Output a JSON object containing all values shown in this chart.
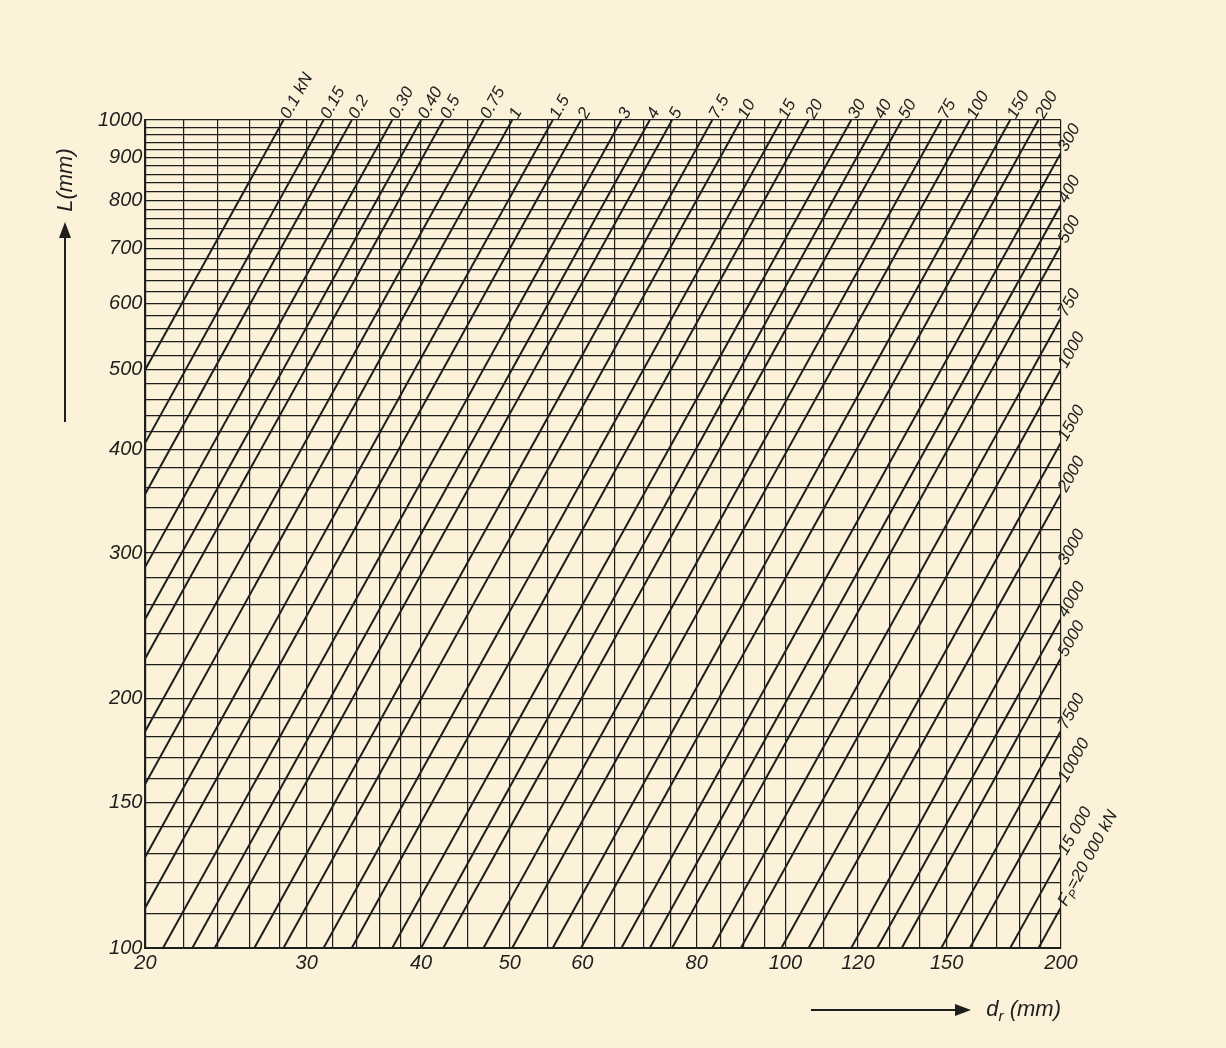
{
  "chart_data": {
    "type": "line",
    "xlabel": "d$_{r}$ (mm)",
    "ylabel": "L(mm)",
    "log": "xy",
    "grid": true,
    "legend": false,
    "marker": "none",
    "line_style": "solid",
    "xlim": [
      20,
      200
    ],
    "ylim": [
      100,
      1000
    ],
    "xticks": [
      20,
      {
        "value": 22,
        "label": null
      },
      {
        "value": 24,
        "label": null
      },
      {
        "value": 26,
        "label": null
      },
      {
        "value": 28,
        "label": null
      },
      30,
      {
        "value": 32,
        "label": null
      },
      {
        "value": 34,
        "label": null
      },
      {
        "value": 36,
        "label": null
      },
      {
        "value": 38,
        "label": null
      },
      40,
      {
        "value": 45,
        "label": null
      },
      50,
      {
        "value": 55,
        "label": null
      },
      60,
      {
        "value": 65,
        "label": null
      },
      {
        "value": 70,
        "label": null
      },
      {
        "value": 75,
        "label": null
      },
      80,
      {
        "value": 85,
        "label": null
      },
      {
        "value": 90,
        "label": null
      },
      {
        "value": 95,
        "label": null
      },
      100,
      {
        "value": 110,
        "label": null
      },
      120,
      {
        "value": 130,
        "label": null
      },
      {
        "value": 140,
        "label": null
      },
      150,
      {
        "value": 160,
        "label": null
      },
      {
        "value": 170,
        "label": null
      },
      {
        "value": 180,
        "label": null
      },
      {
        "value": 190,
        "label": null
      },
      200
    ],
    "yticks": [
      100,
      {
        "value": 110,
        "label": null
      },
      {
        "value": 120,
        "label": null
      },
      {
        "value": 130,
        "label": null
      },
      {
        "value": 140,
        "label": null
      },
      150,
      {
        "value": 160,
        "label": null
      },
      {
        "value": 170,
        "label": null
      },
      {
        "value": 180,
        "label": null
      },
      {
        "value": 190,
        "label": null
      },
      200,
      {
        "value": 220,
        "label": null
      },
      {
        "value": 240,
        "label": null
      },
      {
        "value": 260,
        "label": null
      },
      {
        "value": 280,
        "label": null
      },
      300,
      {
        "value": 320,
        "label": null
      },
      {
        "value": 340,
        "label": null
      },
      {
        "value": 360,
        "label": null
      },
      {
        "value": 380,
        "label": null
      },
      400,
      {
        "value": 420,
        "label": null
      },
      {
        "value": 440,
        "label": null
      },
      {
        "value": 460,
        "label": null
      },
      {
        "value": 480,
        "label": null
      },
      500,
      {
        "value": 520,
        "label": null
      },
      {
        "value": 540,
        "label": null
      },
      {
        "value": 560,
        "label": null
      },
      {
        "value": 580,
        "label": null
      },
      600,
      {
        "value": 620,
        "label": null
      },
      {
        "value": 640,
        "label": null
      },
      {
        "value": 660,
        "label": null
      },
      {
        "value": 680,
        "label": null
      },
      700,
      {
        "value": 720,
        "label": null
      },
      {
        "value": 740,
        "label": null
      },
      {
        "value": 760,
        "label": null
      },
      {
        "value": 780,
        "label": null
      },
      800,
      {
        "value": 820,
        "label": null
      },
      {
        "value": 840,
        "label": null
      },
      {
        "value": 860,
        "label": null
      },
      {
        "value": 880,
        "label": null
      },
      900,
      {
        "value": 920,
        "label": null
      },
      {
        "value": 940,
        "label": null
      },
      {
        "value": 960,
        "label": null
      },
      {
        "value": 980,
        "label": null
      },
      1000
    ],
    "series": [
      {
        "name": "0.1 kN",
        "color": "#1e1e1e",
        "x": [
          20,
          28.3
        ],
        "values": [
          500,
          1000
        ]
      },
      {
        "name": "0.15",
        "color": "#1e1e1e",
        "x": [
          20,
          31.3
        ],
        "values": [
          408,
          1000
        ]
      },
      {
        "name": "0.2",
        "color": "#1e1e1e",
        "x": [
          20,
          33.6
        ],
        "values": [
          354,
          1000
        ]
      },
      {
        "name": "0.30",
        "color": "#1e1e1e",
        "x": [
          20,
          37.2
        ],
        "values": [
          289,
          1000
        ]
      },
      {
        "name": "0.40",
        "color": "#1e1e1e",
        "x": [
          20,
          40
        ],
        "values": [
          250,
          1000
        ]
      },
      {
        "name": "0.5",
        "color": "#1e1e1e",
        "x": [
          20,
          42.3
        ],
        "values": [
          224,
          1000
        ]
      },
      {
        "name": "0.75",
        "color": "#1e1e1e",
        "x": [
          20,
          46.8
        ],
        "values": [
          183,
          1000
        ]
      },
      {
        "name": "1",
        "color": "#1e1e1e",
        "x": [
          20,
          50.3
        ],
        "values": [
          158,
          1000
        ]
      },
      {
        "name": "1.5",
        "color": "#1e1e1e",
        "x": [
          20,
          55.7
        ],
        "values": [
          129,
          1000
        ]
      },
      {
        "name": "2",
        "color": "#1e1e1e",
        "x": [
          20,
          59.8
        ],
        "values": [
          112,
          1000
        ]
      },
      {
        "name": "3",
        "color": "#1e1e1e",
        "x": [
          20.9,
          66.2
        ],
        "values": [
          100,
          1000
        ]
      },
      {
        "name": "4",
        "color": "#1e1e1e",
        "x": [
          22.5,
          71.1
        ],
        "values": [
          100,
          1000
        ]
      },
      {
        "name": "5",
        "color": "#1e1e1e",
        "x": [
          23.8,
          75.2
        ],
        "values": [
          100,
          1000
        ]
      },
      {
        "name": "7.5",
        "color": "#1e1e1e",
        "x": [
          26.3,
          83.2
        ],
        "values": [
          100,
          1000
        ]
      },
      {
        "name": "10",
        "color": "#1e1e1e",
        "x": [
          28.3,
          89.4
        ],
        "values": [
          100,
          1000
        ]
      },
      {
        "name": "15",
        "color": "#1e1e1e",
        "x": [
          31.3,
          99
        ],
        "values": [
          100,
          1000
        ]
      },
      {
        "name": "20",
        "color": "#1e1e1e",
        "x": [
          33.6,
          106
        ],
        "values": [
          100,
          1000
        ]
      },
      {
        "name": "30",
        "color": "#1e1e1e",
        "x": [
          37.2,
          118
        ],
        "values": [
          100,
          1000
        ]
      },
      {
        "name": "40",
        "color": "#1e1e1e",
        "x": [
          40,
          126
        ],
        "values": [
          100,
          1000
        ]
      },
      {
        "name": "50",
        "color": "#1e1e1e",
        "x": [
          42.3,
          134
        ],
        "values": [
          100,
          1000
        ]
      },
      {
        "name": "75",
        "color": "#1e1e1e",
        "x": [
          46.8,
          148
        ],
        "values": [
          100,
          1000
        ]
      },
      {
        "name": "100",
        "color": "#1e1e1e",
        "x": [
          50.3,
          159
        ],
        "values": [
          100,
          1000
        ]
      },
      {
        "name": "150",
        "color": "#1e1e1e",
        "x": [
          55.7,
          176
        ],
        "values": [
          100,
          1000
        ]
      },
      {
        "name": "200",
        "color": "#1e1e1e",
        "x": [
          59.8,
          189
        ],
        "values": [
          100,
          1000
        ]
      },
      {
        "name": "300",
        "color": "#1e1e1e",
        "x": [
          66.2,
          200
        ],
        "values": [
          100,
          913
        ]
      },
      {
        "name": "400",
        "color": "#1e1e1e",
        "x": [
          71.1,
          200
        ],
        "values": [
          100,
          791
        ]
      },
      {
        "name": "500",
        "color": "#1e1e1e",
        "x": [
          75.2,
          200
        ],
        "values": [
          100,
          707
        ]
      },
      {
        "name": "750",
        "color": "#1e1e1e",
        "x": [
          83.2,
          200
        ],
        "values": [
          100,
          577
        ]
      },
      {
        "name": "1000",
        "color": "#1e1e1e",
        "x": [
          89.4,
          200
        ],
        "values": [
          100,
          500
        ]
      },
      {
        "name": "1500",
        "color": "#1e1e1e",
        "x": [
          99,
          200
        ],
        "values": [
          100,
          408
        ]
      },
      {
        "name": "2000",
        "color": "#1e1e1e",
        "x": [
          106,
          200
        ],
        "values": [
          100,
          354
        ]
      },
      {
        "name": "3000",
        "color": "#1e1e1e",
        "x": [
          118,
          200
        ],
        "values": [
          100,
          289
        ]
      },
      {
        "name": "4000",
        "color": "#1e1e1e",
        "x": [
          126,
          200
        ],
        "values": [
          100,
          250
        ]
      },
      {
        "name": "5000",
        "color": "#1e1e1e",
        "x": [
          134,
          200
        ],
        "values": [
          100,
          224
        ]
      },
      {
        "name": "7500",
        "color": "#1e1e1e",
        "x": [
          148,
          200
        ],
        "values": [
          100,
          183
        ]
      },
      {
        "name": "10000",
        "color": "#1e1e1e",
        "x": [
          159,
          200
        ],
        "values": [
          100,
          158
        ]
      },
      {
        "name": "15 000",
        "color": "#1e1e1e",
        "x": [
          176,
          200
        ],
        "values": [
          100,
          129
        ]
      },
      {
        "name": "F$_{P}$=20 000 kN",
        "color": "#1e1e1e",
        "x": [
          189,
          200
        ],
        "values": [
          100,
          112
        ]
      }
    ]
  }
}
